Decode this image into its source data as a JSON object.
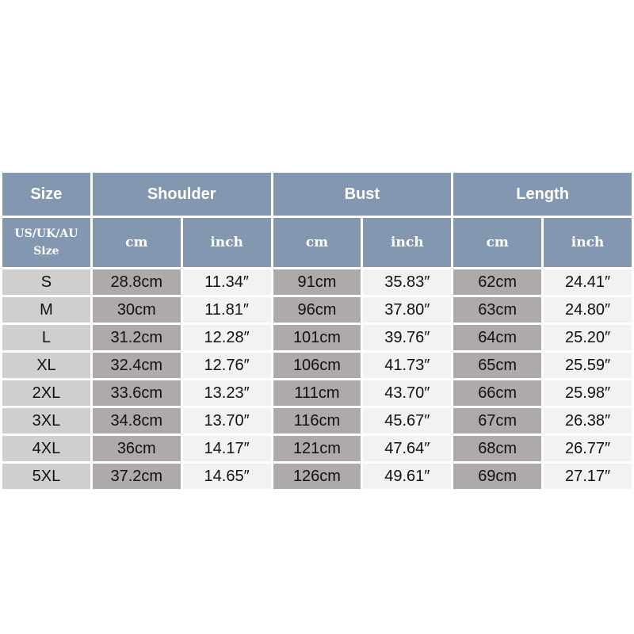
{
  "headers": {
    "size": "Size",
    "groups": [
      "Shoulder",
      "Bust",
      "Length"
    ],
    "size_sub_line1": "US/UK/AU",
    "size_sub_line2": "Size",
    "unit_cm": "cm",
    "unit_inch": "inch"
  },
  "colors": {
    "header": "#8497b0",
    "size_col": "#d0cece",
    "cm_col": "#aeaaaa",
    "inch_col": "#f2f2f2"
  },
  "rows": [
    [
      "S",
      "28.8cm",
      "11.34″",
      "91cm",
      "35.83″",
      "62cm",
      "24.41″"
    ],
    [
      "M",
      "30cm",
      "11.81″",
      "96cm",
      "37.80″",
      "63cm",
      "24.80″"
    ],
    [
      "L",
      "31.2cm",
      "12.28″",
      "101cm",
      "39.76″",
      "64cm",
      "25.20″"
    ],
    [
      "XL",
      "32.4cm",
      "12.76″",
      "106cm",
      "41.73″",
      "65cm",
      "25.59″"
    ],
    [
      "2XL",
      "33.6cm",
      "13.23″",
      "111cm",
      "43.70″",
      "66cm",
      "25.98″"
    ],
    [
      "3XL",
      "34.8cm",
      "13.70″",
      "116cm",
      "45.67″",
      "67cm",
      "26.38″"
    ],
    [
      "4XL",
      "36cm",
      "14.17″",
      "121cm",
      "47.64″",
      "68cm",
      "26.77″"
    ],
    [
      "5XL",
      "37.2cm",
      "14.65″",
      "126cm",
      "49.61″",
      "69cm",
      "27.17″"
    ]
  ]
}
